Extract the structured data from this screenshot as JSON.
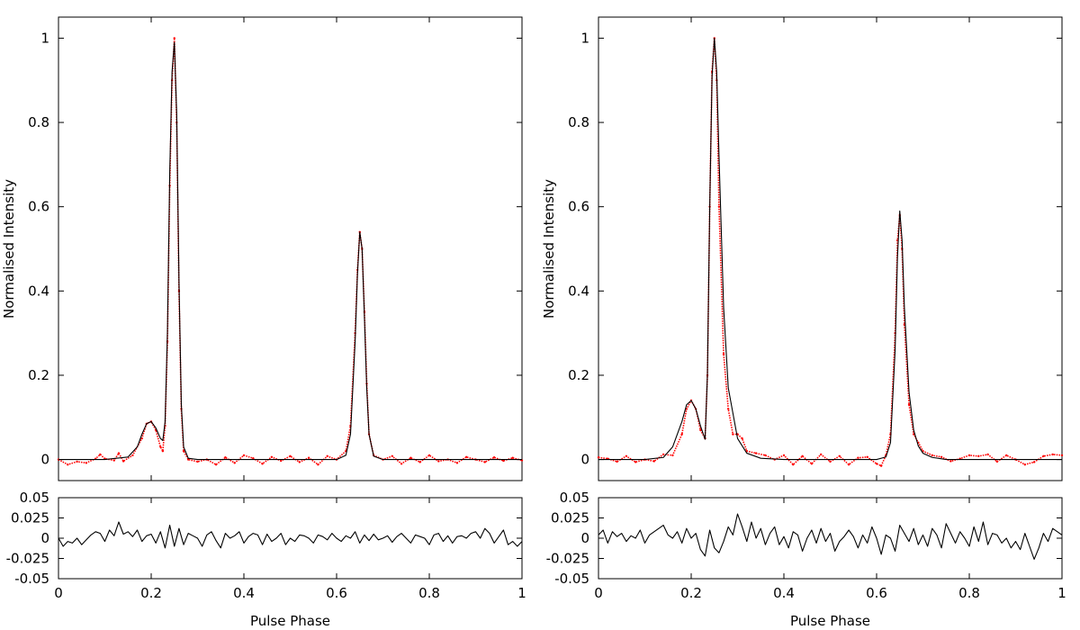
{
  "chart_data": [
    {
      "type": "scatter",
      "panel": "left-main",
      "title": "",
      "xlabel": "",
      "ylabel": "Normalised Intensity",
      "xlim": [
        0,
        1
      ],
      "ylim": [
        -0.05,
        1.05
      ],
      "xticks": [
        "0",
        "0.2",
        "0.4",
        "0.6",
        "0.8",
        "1"
      ],
      "yticks": [
        "0",
        "0.2",
        "0.4",
        "0.6",
        "0.8",
        "1"
      ],
      "grid": false,
      "series": [
        {
          "kind": "points",
          "color": "#ff0000",
          "x": [
            0,
            0.02,
            0.04,
            0.06,
            0.08,
            0.09,
            0.1,
            0.12,
            0.13,
            0.14,
            0.16,
            0.18,
            0.19,
            0.2,
            0.21,
            0.22,
            0.225,
            0.23,
            0.235,
            0.24,
            0.245,
            0.25,
            0.255,
            0.26,
            0.265,
            0.27,
            0.28,
            0.3,
            0.32,
            0.34,
            0.36,
            0.38,
            0.4,
            0.42,
            0.44,
            0.46,
            0.48,
            0.5,
            0.52,
            0.54,
            0.56,
            0.58,
            0.6,
            0.62,
            0.63,
            0.64,
            0.645,
            0.65,
            0.655,
            0.66,
            0.665,
            0.67,
            0.68,
            0.7,
            0.72,
            0.74,
            0.76,
            0.78,
            0.8,
            0.82,
            0.84,
            0.86,
            0.88,
            0.9,
            0.92,
            0.94,
            0.96,
            0.98,
            1.0
          ],
          "y": [
            0.0,
            -0.012,
            -0.005,
            -0.008,
            0.002,
            0.012,
            0.002,
            -0.002,
            0.015,
            -0.004,
            0.01,
            0.05,
            0.085,
            0.09,
            0.07,
            0.03,
            0.02,
            0.08,
            0.28,
            0.65,
            0.9,
            1.0,
            0.8,
            0.4,
            0.12,
            0.02,
            0.0,
            -0.005,
            0.0,
            -0.012,
            0.005,
            -0.008,
            0.01,
            0.003,
            -0.01,
            0.006,
            -0.003,
            0.008,
            -0.006,
            0.004,
            -0.012,
            0.008,
            0.0,
            0.02,
            0.08,
            0.3,
            0.45,
            0.54,
            0.5,
            0.35,
            0.18,
            0.06,
            0.01,
            0.0,
            0.008,
            -0.01,
            0.004,
            -0.006,
            0.01,
            -0.004,
            0.0,
            -0.008,
            0.006,
            0.0,
            -0.006,
            0.005,
            -0.003,
            0.004,
            -0.002
          ]
        },
        {
          "kind": "model",
          "color": "#000000",
          "x": [
            0,
            0.1,
            0.15,
            0.17,
            0.18,
            0.19,
            0.2,
            0.21,
            0.22,
            0.225,
            0.23,
            0.235,
            0.24,
            0.245,
            0.25,
            0.255,
            0.26,
            0.265,
            0.27,
            0.28,
            0.3,
            0.5,
            0.6,
            0.62,
            0.63,
            0.64,
            0.645,
            0.65,
            0.655,
            0.66,
            0.665,
            0.67,
            0.68,
            0.7,
            1.0
          ],
          "y": [
            0.0,
            0.0,
            0.006,
            0.03,
            0.06,
            0.085,
            0.09,
            0.075,
            0.05,
            0.045,
            0.09,
            0.3,
            0.68,
            0.92,
            0.99,
            0.82,
            0.42,
            0.13,
            0.03,
            0.003,
            0.0,
            0.0,
            0.0,
            0.01,
            0.06,
            0.28,
            0.44,
            0.54,
            0.5,
            0.34,
            0.17,
            0.06,
            0.008,
            0.0,
            0.0
          ]
        }
      ]
    },
    {
      "type": "line",
      "panel": "left-residual",
      "xlabel": "Pulse Phase",
      "ylabel": "",
      "xlim": [
        0,
        1
      ],
      "ylim": [
        -0.05,
        0.05
      ],
      "xticks": [
        "0",
        "0.2",
        "0.4",
        "0.6",
        "0.8",
        "1"
      ],
      "yticks": [
        "0.05",
        "0.025",
        "0",
        "-0.025",
        "-0.05"
      ],
      "series": [
        {
          "kind": "residual",
          "color": "#000000",
          "x": [
            0,
            0.01,
            0.02,
            0.03,
            0.04,
            0.05,
            0.06,
            0.07,
            0.08,
            0.09,
            0.1,
            0.11,
            0.12,
            0.13,
            0.14,
            0.15,
            0.16,
            0.17,
            0.18,
            0.19,
            0.2,
            0.21,
            0.22,
            0.23,
            0.24,
            0.25,
            0.26,
            0.27,
            0.28,
            0.29,
            0.3,
            0.31,
            0.32,
            0.33,
            0.34,
            0.35,
            0.36,
            0.37,
            0.38,
            0.39,
            0.4,
            0.41,
            0.42,
            0.43,
            0.44,
            0.45,
            0.46,
            0.47,
            0.48,
            0.49,
            0.5,
            0.51,
            0.52,
            0.53,
            0.54,
            0.55,
            0.56,
            0.57,
            0.58,
            0.59,
            0.6,
            0.61,
            0.62,
            0.63,
            0.64,
            0.65,
            0.66,
            0.67,
            0.68,
            0.69,
            0.7,
            0.71,
            0.72,
            0.73,
            0.74,
            0.75,
            0.76,
            0.77,
            0.78,
            0.79,
            0.8,
            0.81,
            0.82,
            0.83,
            0.84,
            0.85,
            0.86,
            0.87,
            0.88,
            0.89,
            0.9,
            0.91,
            0.92,
            0.93,
            0.94,
            0.95,
            0.96,
            0.97,
            0.98,
            0.99,
            1.0
          ],
          "y": [
            0.0,
            -0.01,
            -0.004,
            -0.006,
            0.0,
            -0.008,
            -0.002,
            0.004,
            0.008,
            0.006,
            -0.004,
            0.01,
            0.003,
            0.02,
            0.005,
            0.008,
            0.002,
            0.01,
            -0.004,
            0.003,
            0.005,
            -0.006,
            0.008,
            -0.012,
            0.016,
            -0.01,
            0.012,
            -0.008,
            0.006,
            0.003,
            0.0,
            -0.01,
            0.004,
            0.008,
            -0.003,
            -0.012,
            0.006,
            0.0,
            0.003,
            0.008,
            -0.006,
            0.002,
            0.006,
            0.004,
            -0.008,
            0.005,
            -0.004,
            0.0,
            0.006,
            -0.008,
            0.0,
            -0.004,
            0.004,
            0.003,
            0.0,
            -0.006,
            0.004,
            0.002,
            -0.002,
            0.006,
            0.0,
            -0.004,
            0.003,
            0.0,
            0.008,
            -0.006,
            0.004,
            -0.003,
            0.005,
            -0.002,
            0.0,
            0.003,
            -0.005,
            0.002,
            0.006,
            0.0,
            -0.006,
            0.004,
            0.002,
            0.0,
            -0.008,
            0.004,
            0.006,
            -0.004,
            0.003,
            -0.006,
            0.002,
            0.003,
            0.0,
            0.006,
            0.008,
            0.0,
            0.012,
            0.006,
            -0.006,
            0.002,
            0.01,
            -0.008,
            -0.004,
            -0.01,
            -0.004
          ]
        }
      ]
    },
    {
      "type": "scatter",
      "panel": "right-main",
      "title": "",
      "xlabel": "",
      "ylabel": "Normalised Intensity",
      "xlim": [
        0,
        1
      ],
      "ylim": [
        -0.05,
        1.05
      ],
      "xticks": [
        "0",
        "0.2",
        "0.4",
        "0.6",
        "0.8",
        "1"
      ],
      "yticks": [
        "0",
        "0.2",
        "0.4",
        "0.6",
        "0.8",
        "1"
      ],
      "grid": false,
      "series": [
        {
          "kind": "points",
          "color": "#ff0000",
          "x": [
            0,
            0.02,
            0.04,
            0.06,
            0.08,
            0.1,
            0.12,
            0.14,
            0.16,
            0.18,
            0.19,
            0.2,
            0.21,
            0.22,
            0.23,
            0.235,
            0.24,
            0.245,
            0.25,
            0.255,
            0.26,
            0.27,
            0.28,
            0.29,
            0.3,
            0.31,
            0.32,
            0.34,
            0.36,
            0.38,
            0.4,
            0.42,
            0.44,
            0.46,
            0.48,
            0.5,
            0.52,
            0.54,
            0.56,
            0.58,
            0.6,
            0.61,
            0.62,
            0.63,
            0.64,
            0.645,
            0.65,
            0.655,
            0.66,
            0.67,
            0.68,
            0.69,
            0.7,
            0.72,
            0.74,
            0.76,
            0.78,
            0.8,
            0.82,
            0.84,
            0.86,
            0.88,
            0.9,
            0.92,
            0.94,
            0.96,
            0.98,
            1.0
          ],
          "y": [
            0.005,
            0.002,
            -0.005,
            0.008,
            -0.006,
            0.0,
            -0.004,
            0.012,
            0.01,
            0.06,
            0.12,
            0.14,
            0.12,
            0.07,
            0.05,
            0.2,
            0.6,
            0.92,
            1.0,
            0.9,
            0.6,
            0.25,
            0.12,
            0.06,
            0.06,
            0.05,
            0.02,
            0.015,
            0.01,
            0.0,
            0.01,
            -0.012,
            0.008,
            -0.01,
            0.012,
            -0.005,
            0.008,
            -0.012,
            0.004,
            0.006,
            -0.01,
            -0.015,
            0.01,
            0.06,
            0.3,
            0.52,
            0.58,
            0.5,
            0.32,
            0.13,
            0.06,
            0.04,
            0.02,
            0.01,
            0.006,
            -0.004,
            0.002,
            0.01,
            0.008,
            0.012,
            -0.005,
            0.01,
            0.0,
            -0.012,
            -0.006,
            0.008,
            0.012,
            0.01
          ]
        },
        {
          "kind": "model",
          "color": "#000000",
          "x": [
            0,
            0.1,
            0.14,
            0.16,
            0.18,
            0.19,
            0.2,
            0.21,
            0.22,
            0.23,
            0.235,
            0.24,
            0.245,
            0.25,
            0.255,
            0.26,
            0.27,
            0.28,
            0.3,
            0.32,
            0.35,
            0.4,
            0.6,
            0.62,
            0.63,
            0.64,
            0.645,
            0.65,
            0.655,
            0.66,
            0.67,
            0.68,
            0.69,
            0.7,
            0.72,
            0.75,
            1.0
          ],
          "y": [
            0.0,
            0.0,
            0.005,
            0.03,
            0.09,
            0.13,
            0.14,
            0.12,
            0.08,
            0.048,
            0.2,
            0.6,
            0.91,
            1.0,
            0.92,
            0.72,
            0.36,
            0.17,
            0.05,
            0.015,
            0.003,
            0.0,
            0.0,
            0.006,
            0.04,
            0.26,
            0.48,
            0.59,
            0.52,
            0.36,
            0.16,
            0.07,
            0.032,
            0.015,
            0.005,
            0.0,
            0.0
          ]
        }
      ]
    },
    {
      "type": "line",
      "panel": "right-residual",
      "xlabel": "Pulse Phase",
      "ylabel": "",
      "xlim": [
        0,
        1
      ],
      "ylim": [
        -0.05,
        0.05
      ],
      "xticks": [
        "0",
        "0.2",
        "0.4",
        "0.6",
        "0.8",
        "1"
      ],
      "yticks": [
        "0.05",
        "0.025",
        "0",
        "-0.025",
        "-0.05"
      ],
      "series": [
        {
          "kind": "residual",
          "color": "#000000",
          "x": [
            0,
            0.01,
            0.02,
            0.03,
            0.04,
            0.05,
            0.06,
            0.07,
            0.08,
            0.09,
            0.1,
            0.11,
            0.12,
            0.13,
            0.14,
            0.15,
            0.16,
            0.17,
            0.18,
            0.19,
            0.2,
            0.21,
            0.22,
            0.23,
            0.24,
            0.25,
            0.26,
            0.27,
            0.28,
            0.29,
            0.3,
            0.31,
            0.32,
            0.33,
            0.34,
            0.35,
            0.36,
            0.37,
            0.38,
            0.39,
            0.4,
            0.41,
            0.42,
            0.43,
            0.44,
            0.45,
            0.46,
            0.47,
            0.48,
            0.49,
            0.5,
            0.51,
            0.52,
            0.53,
            0.54,
            0.55,
            0.56,
            0.57,
            0.58,
            0.59,
            0.6,
            0.61,
            0.62,
            0.63,
            0.64,
            0.65,
            0.66,
            0.67,
            0.68,
            0.69,
            0.7,
            0.71,
            0.72,
            0.73,
            0.74,
            0.75,
            0.76,
            0.77,
            0.78,
            0.79,
            0.8,
            0.81,
            0.82,
            0.83,
            0.84,
            0.85,
            0.86,
            0.87,
            0.88,
            0.89,
            0.9,
            0.91,
            0.92,
            0.93,
            0.94,
            0.95,
            0.96,
            0.97,
            0.98,
            0.99,
            1.0
          ],
          "y": [
            0.004,
            0.01,
            -0.006,
            0.008,
            0.002,
            0.006,
            -0.004,
            0.003,
            0.0,
            0.01,
            -0.006,
            0.004,
            0.008,
            0.012,
            0.016,
            0.004,
            0.0,
            0.008,
            -0.006,
            0.012,
            0.0,
            0.006,
            -0.014,
            -0.022,
            0.01,
            -0.012,
            -0.018,
            -0.004,
            0.014,
            0.004,
            0.03,
            0.014,
            -0.004,
            0.02,
            0.0,
            0.012,
            -0.008,
            0.006,
            0.014,
            -0.008,
            0.002,
            -0.012,
            0.008,
            0.004,
            -0.016,
            0.0,
            0.01,
            -0.006,
            0.012,
            -0.004,
            0.006,
            -0.016,
            -0.004,
            0.002,
            0.01,
            0.002,
            -0.012,
            0.004,
            -0.006,
            0.014,
            0.0,
            -0.02,
            0.004,
            0.0,
            -0.016,
            0.016,
            0.006,
            -0.004,
            0.012,
            -0.008,
            0.004,
            -0.01,
            0.012,
            0.004,
            -0.012,
            0.018,
            0.006,
            -0.006,
            0.008,
            0.0,
            -0.01,
            0.014,
            -0.004,
            0.02,
            -0.008,
            0.006,
            0.004,
            -0.006,
            0.0,
            -0.012,
            -0.004,
            -0.014,
            0.006,
            -0.01,
            -0.026,
            -0.012,
            0.006,
            -0.004,
            0.012,
            0.008,
            0.004
          ]
        }
      ]
    }
  ]
}
